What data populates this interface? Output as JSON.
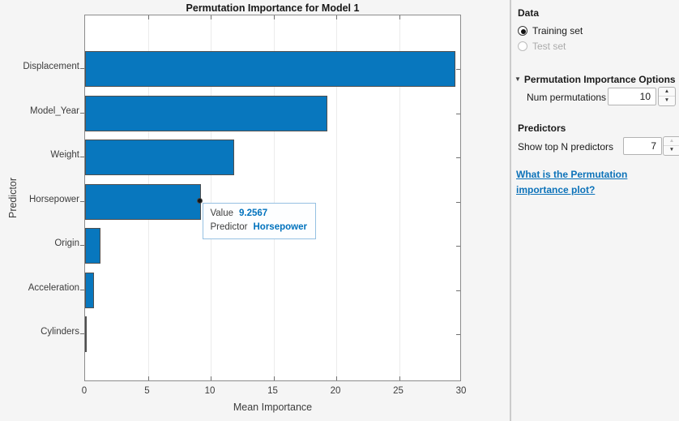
{
  "colors": {
    "bar_fill": "#0877be",
    "bar_edge": "#4f4f4f",
    "accent_blue": "#0072bd",
    "link_blue": "#0c72b9",
    "tooltip_border": "#95c0e2",
    "panel_bg": "#f5f5f5"
  },
  "chart_data": {
    "type": "bar",
    "orientation": "horizontal",
    "title": "Permutation Importance for Model 1",
    "xlabel": "Mean Importance",
    "ylabel": "Predictor",
    "categories": [
      "Displacement",
      "Model_Year",
      "Weight",
      "Horsepower",
      "Origin",
      "Acceleration",
      "Cylinders"
    ],
    "values": [
      29.5,
      19.3,
      11.9,
      9.2567,
      1.25,
      0.7,
      0.03
    ],
    "xlim": [
      0,
      30
    ],
    "xticks": [
      0,
      5,
      10,
      15,
      20,
      25,
      30
    ],
    "grid": true,
    "legend": null
  },
  "tooltip": {
    "target_category": "Horsepower",
    "rows": [
      {
        "label": "Value",
        "value": "9.2567"
      },
      {
        "label": "Predictor",
        "value": "Horsepower"
      }
    ]
  },
  "panel": {
    "data_section": {
      "title": "Data",
      "options": [
        {
          "label": "Training set",
          "selected": true,
          "enabled": true
        },
        {
          "label": "Test set",
          "selected": false,
          "enabled": false
        }
      ]
    },
    "options_section": {
      "title": "Permutation Importance Options",
      "collapse_icon": "triangle-down",
      "fields": [
        {
          "label": "Num permutations",
          "value": "10",
          "up_enabled": true,
          "down_enabled": true
        }
      ]
    },
    "predictors_section": {
      "title": "Predictors",
      "fields": [
        {
          "label": "Show top N predictors",
          "value": "7",
          "up_enabled": false,
          "down_enabled": true
        }
      ]
    },
    "help_link": {
      "text": "What is the Permutation importance plot?"
    }
  }
}
